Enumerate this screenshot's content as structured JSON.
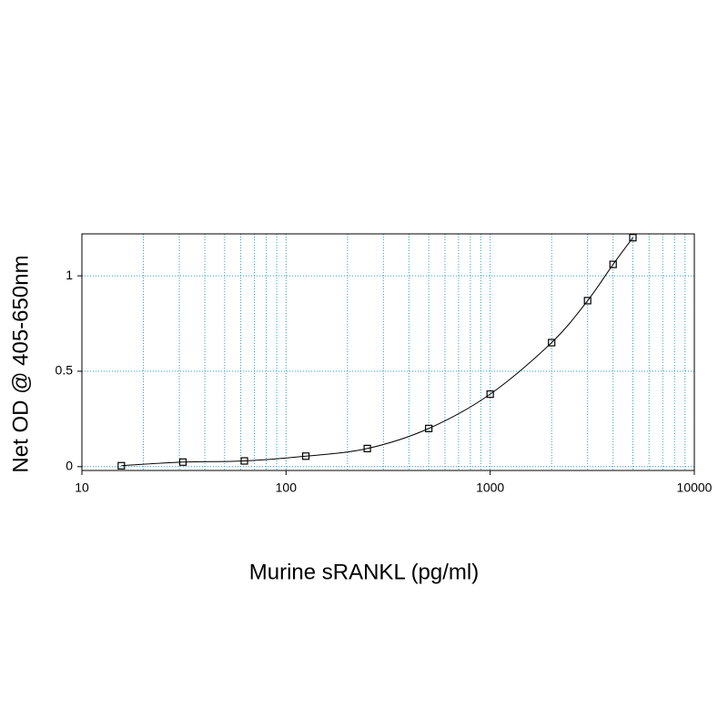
{
  "chart_data": {
    "type": "scatter",
    "x_label": "Murine sRANKL (pg/ml)",
    "y_label": "Net OD @ 405-650nm",
    "series": [
      {
        "color": "#000000",
        "marker": "square",
        "line": true,
        "x": [
          15.6,
          31.25,
          62.5,
          125,
          250,
          500,
          1000,
          2000,
          3000,
          4000,
          5000
        ],
        "values": [
          0.005,
          0.024,
          0.03,
          0.055,
          0.095,
          0.2,
          0.38,
          0.65,
          0.87,
          1.06,
          1.2
        ]
      }
    ],
    "xscale": "log",
    "xlim": [
      10,
      10000
    ],
    "xticks": [
      10,
      100,
      1000,
      10000
    ],
    "ylim": [
      -0.02,
      1.22
    ],
    "yticks": [
      0,
      0.5,
      1
    ],
    "grid": true,
    "minor_grid": true,
    "grid_color": "#2aa0c8"
  }
}
